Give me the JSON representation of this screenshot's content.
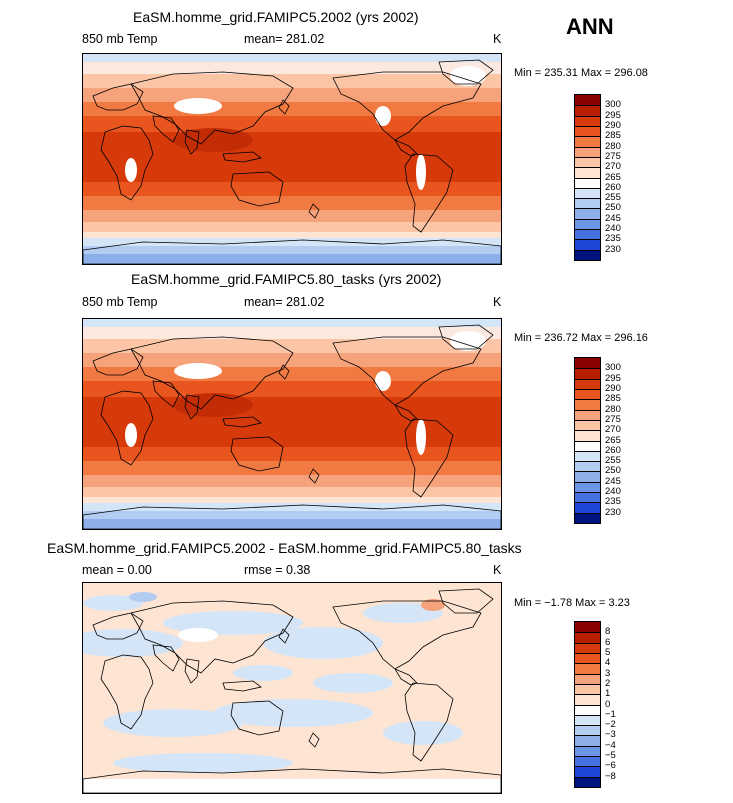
{
  "season_label": "ANN",
  "panels": [
    {
      "id": "p1",
      "title": "EaSM.homme_grid.FAMIPC5.2002 (yrs 2002)",
      "left_label": "850 mb Temp",
      "mid_label": "mean= 281.02",
      "units": "K",
      "minmax": "Min = 235.31 Max = 296.08",
      "kind": "temp",
      "colorbar": {
        "labels": [
          "300",
          "295",
          "290",
          "285",
          "280",
          "275",
          "270",
          "265",
          "260",
          "255",
          "250",
          "245",
          "240",
          "235",
          "230"
        ],
        "colors": [
          "#8b0000",
          "#b81f00",
          "#d63a0b",
          "#e8551f",
          "#f07a42",
          "#f6a27b",
          "#fbc5a6",
          "#fde4d3",
          "#ffffff",
          "#d4e5f7",
          "#b3ccf1",
          "#8db0eb",
          "#6b95e6",
          "#4672e0",
          "#1f46d6",
          "#00147f"
        ]
      }
    },
    {
      "id": "p2",
      "title": "EaSM.homme_grid.FAMIPC5.80_tasks (yrs 2002)",
      "left_label": "850 mb Temp",
      "mid_label": "mean= 281.02",
      "units": "K",
      "minmax": "Min = 236.72 Max = 296.16",
      "kind": "temp",
      "colorbar": {
        "labels": [
          "300",
          "295",
          "290",
          "285",
          "280",
          "275",
          "270",
          "265",
          "260",
          "255",
          "250",
          "245",
          "240",
          "235",
          "230"
        ],
        "colors": [
          "#8b0000",
          "#b81f00",
          "#d63a0b",
          "#e8551f",
          "#f07a42",
          "#f6a27b",
          "#fbc5a6",
          "#fde4d3",
          "#ffffff",
          "#d4e5f7",
          "#b3ccf1",
          "#8db0eb",
          "#6b95e6",
          "#4672e0",
          "#1f46d6",
          "#00147f"
        ]
      }
    },
    {
      "id": "p3",
      "title": "EaSM.homme_grid.FAMIPC5.2002 - EaSM.homme_grid.FAMIPC5.80_tasks",
      "left_label": "mean =    0.00",
      "mid_label": "rmse =    0.38",
      "units": "K",
      "minmax": "Min =  −1.78 Max =    3.23",
      "kind": "diff",
      "colorbar": {
        "labels": [
          "8",
          "6",
          "5",
          "4",
          "3",
          "2",
          "1",
          "0",
          "−1",
          "−2",
          "−3",
          "−4",
          "−5",
          "−6",
          "−8"
        ],
        "colors": [
          "#8b0000",
          "#b81f00",
          "#d63a0b",
          "#e8551f",
          "#f07a42",
          "#f6a27b",
          "#fbc5a6",
          "#fde4d3",
          "#ffffff",
          "#d4e5f7",
          "#b3ccf1",
          "#8db0eb",
          "#6b95e6",
          "#4672e0",
          "#1f46d6",
          "#00147f"
        ]
      }
    }
  ]
}
